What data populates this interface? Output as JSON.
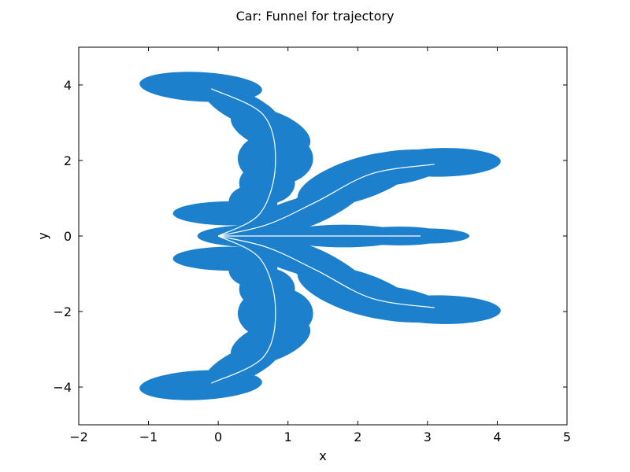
{
  "chart_data": {
    "type": "area",
    "title": "Car: Funnel for trajectory",
    "xlabel": "x",
    "ylabel": "y",
    "xlim": [
      -2,
      5
    ],
    "ylim": [
      -5,
      5
    ],
    "xticks": [
      -2,
      -1,
      0,
      1,
      2,
      3,
      4,
      5
    ],
    "yticks": [
      -4,
      -2,
      0,
      2,
      4
    ],
    "xtick_labels": [
      "−2",
      "−1",
      "0",
      "1",
      "2",
      "3",
      "4",
      "5"
    ],
    "ytick_labels": [
      "−4",
      "−2",
      "0",
      "2",
      "4"
    ],
    "grid": false,
    "legend": false,
    "colors": {
      "funnel": "#1c80cd",
      "trajectory": "#ffffff",
      "axes": "#000000"
    },
    "trajectories": [
      [
        [
          0,
          0
        ],
        [
          0.6,
          0.6
        ],
        [
          0.82,
          1.9
        ],
        [
          0.65,
          3.2
        ],
        [
          -0.1,
          3.9
        ]
      ],
      [
        [
          0,
          0
        ],
        [
          0.7,
          0.3
        ],
        [
          1.4,
          0.9
        ],
        [
          2.2,
          1.65
        ],
        [
          3.1,
          1.9
        ]
      ],
      [
        [
          0,
          0
        ],
        [
          0.8,
          0
        ],
        [
          1.8,
          0
        ],
        [
          2.9,
          0
        ]
      ],
      [
        [
          0,
          0
        ],
        [
          0.7,
          -0.3
        ],
        [
          1.4,
          -0.9
        ],
        [
          2.2,
          -1.65
        ],
        [
          3.1,
          -1.9
        ]
      ],
      [
        [
          0,
          0
        ],
        [
          0.6,
          -0.6
        ],
        [
          0.82,
          -1.9
        ],
        [
          0.65,
          -3.2
        ],
        [
          -0.1,
          -3.9
        ]
      ]
    ],
    "funnel_ellipses": [
      {
        "cx": 0.2,
        "cy": 0.6,
        "rx": 0.85,
        "ry": 0.32,
        "angle": 0
      },
      {
        "cx": 0.5,
        "cy": 0.9,
        "rx": 0.35,
        "ry": 0.45,
        "angle": 0
      },
      {
        "cx": 0.7,
        "cy": 1.4,
        "rx": 0.4,
        "ry": 0.55,
        "angle": 0
      },
      {
        "cx": 0.82,
        "cy": 2.05,
        "rx": 0.54,
        "ry": 0.7,
        "angle": 0
      },
      {
        "cx": 0.75,
        "cy": 2.8,
        "rx": 0.6,
        "ry": 0.5,
        "angle": -20
      },
      {
        "cx": 0.35,
        "cy": 3.4,
        "rx": 0.6,
        "ry": 0.4,
        "angle": -25
      },
      {
        "cx": -0.25,
        "cy": 3.95,
        "rx": 0.88,
        "ry": 0.39,
        "angle": -3
      },
      {
        "cx": 1.0,
        "cy": 0.5,
        "rx": 0.8,
        "ry": 0.4,
        "angle": 20
      },
      {
        "cx": 1.5,
        "cy": 0.9,
        "rx": 0.8,
        "ry": 0.45,
        "angle": 28
      },
      {
        "cx": 2.0,
        "cy": 1.5,
        "rx": 0.9,
        "ry": 0.55,
        "angle": 18
      },
      {
        "cx": 2.5,
        "cy": 1.8,
        "rx": 0.8,
        "ry": 0.45,
        "angle": 8
      },
      {
        "cx": 3.2,
        "cy": 1.95,
        "rx": 0.85,
        "ry": 0.38,
        "angle": 1
      },
      {
        "cx": 0.2,
        "cy": -0.6,
        "rx": 0.85,
        "ry": 0.32,
        "angle": 0
      },
      {
        "cx": 0.5,
        "cy": -0.9,
        "rx": 0.35,
        "ry": 0.45,
        "angle": 0
      },
      {
        "cx": 0.7,
        "cy": -1.4,
        "rx": 0.4,
        "ry": 0.55,
        "angle": 0
      },
      {
        "cx": 0.82,
        "cy": -2.05,
        "rx": 0.54,
        "ry": 0.7,
        "angle": 0
      },
      {
        "cx": 0.75,
        "cy": -2.8,
        "rx": 0.6,
        "ry": 0.5,
        "angle": 20
      },
      {
        "cx": 0.35,
        "cy": -3.4,
        "rx": 0.6,
        "ry": 0.4,
        "angle": 25
      },
      {
        "cx": -0.25,
        "cy": -3.95,
        "rx": 0.88,
        "ry": 0.39,
        "angle": 3
      },
      {
        "cx": 1.0,
        "cy": -0.5,
        "rx": 0.8,
        "ry": 0.4,
        "angle": -20
      },
      {
        "cx": 1.5,
        "cy": -0.9,
        "rx": 0.8,
        "ry": 0.45,
        "angle": -28
      },
      {
        "cx": 2.0,
        "cy": -1.5,
        "rx": 0.9,
        "ry": 0.55,
        "angle": -18
      },
      {
        "cx": 2.5,
        "cy": -1.8,
        "rx": 0.8,
        "ry": 0.45,
        "angle": -8
      },
      {
        "cx": 3.2,
        "cy": -1.95,
        "rx": 0.85,
        "ry": 0.38,
        "angle": -1
      },
      {
        "cx": 0.6,
        "cy": 0,
        "rx": 0.9,
        "ry": 0.3,
        "angle": 0
      },
      {
        "cx": 1.8,
        "cy": 0,
        "rx": 0.9,
        "ry": 0.3,
        "angle": 0
      },
      {
        "cx": 2.6,
        "cy": 0,
        "rx": 0.7,
        "ry": 0.25,
        "angle": 0
      },
      {
        "cx": 3.0,
        "cy": 0,
        "rx": 0.6,
        "ry": 0.2,
        "angle": 0
      }
    ]
  }
}
